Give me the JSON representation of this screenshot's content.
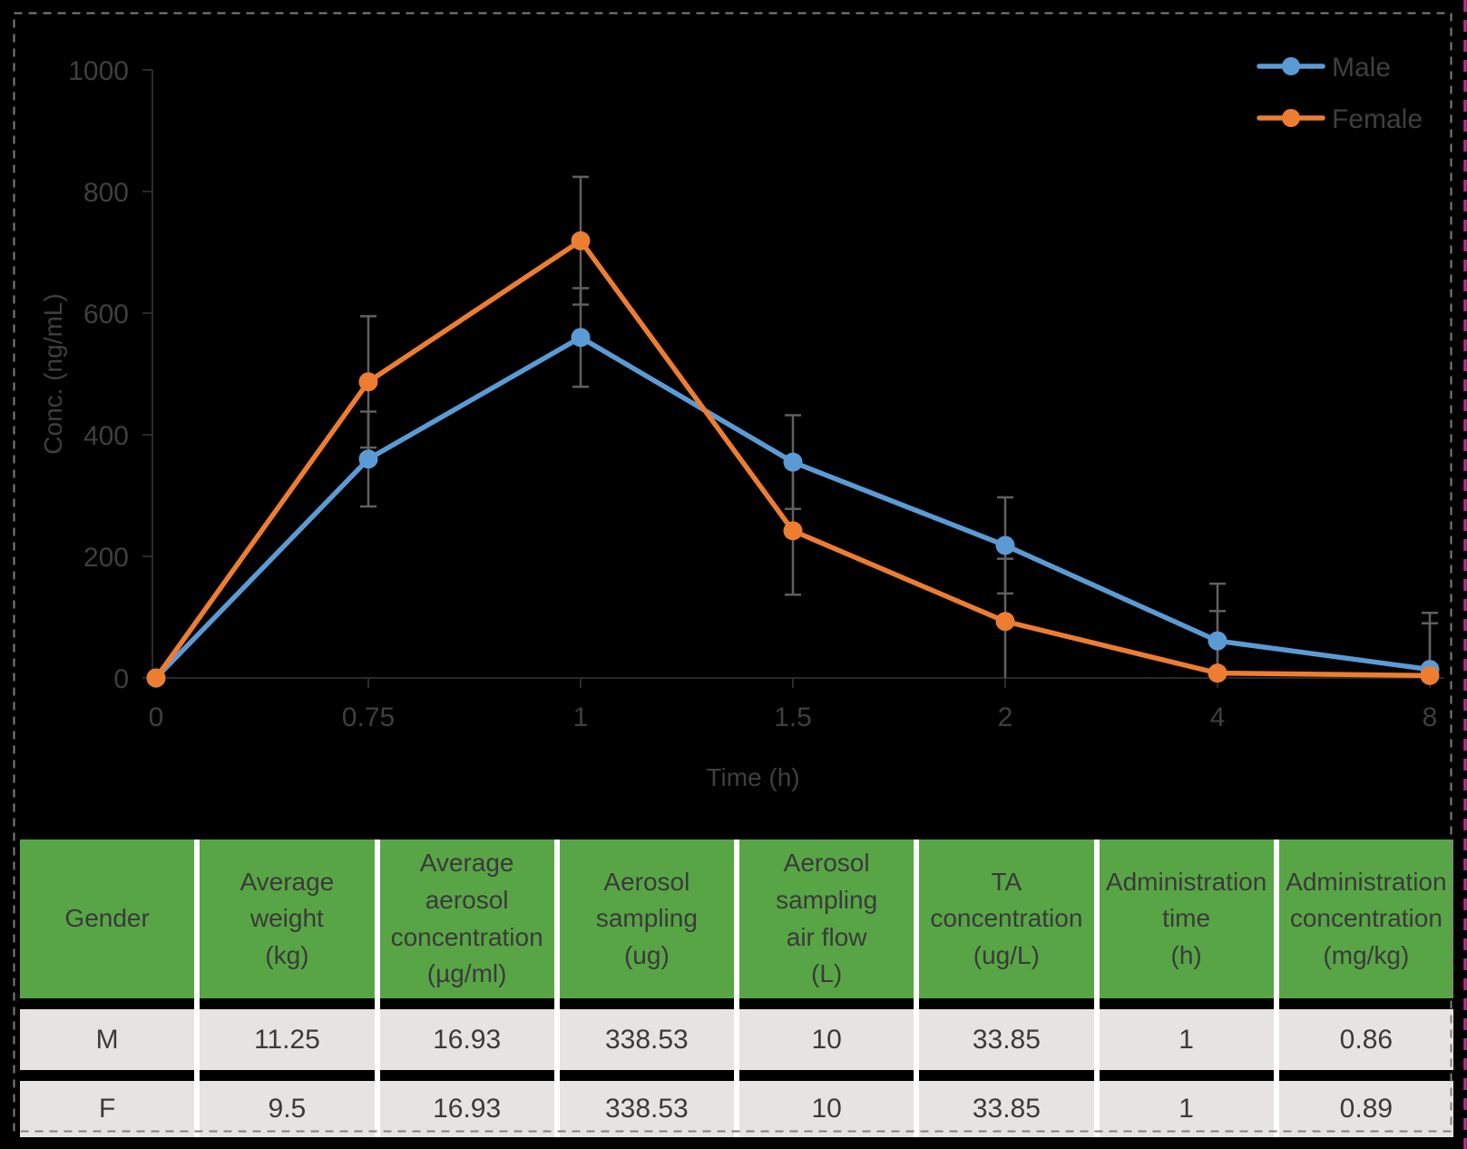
{
  "page": {
    "background": "#000000",
    "border_color": "#7F7F7F",
    "edge_artifact_color": "#B53389"
  },
  "chart_data": {
    "type": "line",
    "title": "",
    "xlabel": "Time (h)",
    "ylabel": "Conc. (ng/mL)",
    "x_categories": [
      "0",
      "0.75",
      "1",
      "1.5",
      "2",
      "4",
      "8"
    ],
    "ylim": [
      0,
      1000
    ],
    "yticks": [
      0,
      200,
      400,
      600,
      800,
      1000
    ],
    "grid": false,
    "legend_position": "top-right",
    "series": [
      {
        "name": "Male",
        "color": "#5B9BD5",
        "values": [
          0,
          360,
          560,
          355,
          218,
          61,
          14
        ],
        "errors": [
          0,
          78,
          81,
          77,
          79,
          94,
          93
        ]
      },
      {
        "name": "Female",
        "color": "#ED7D31",
        "values": [
          0,
          487,
          719,
          242,
          93,
          8,
          4
        ],
        "errors": [
          0,
          108,
          105,
          105,
          103,
          102,
          86
        ]
      }
    ],
    "error_bar_color": "#606060",
    "axis_color": "#2A2A2A",
    "label_color": "#3F3F3F"
  },
  "table": {
    "header_bg": "#58A546",
    "row_bg": "#E5E4E2",
    "text_color": "#3A3A3A",
    "columns": [
      "Gender",
      "Average\nweight\n(kg)",
      "Average\naerosol\nconcentration\n(µg/ml)",
      "Aerosol\nsampling\n(ug)",
      "Aerosol\nsampling\nair flow\n(L)",
      "TA\nconcentration\n(ug/L)",
      "Administration\ntime\n(h)",
      "Administration\nconcentration\n(mg/kg)"
    ],
    "rows": [
      [
        "M",
        "11.25",
        "16.93",
        "338.53",
        "10",
        "33.85",
        "1",
        "0.86"
      ],
      [
        "F",
        "9.5",
        "16.93",
        "338.53",
        "10",
        "33.85",
        "1",
        "0.89"
      ]
    ]
  }
}
